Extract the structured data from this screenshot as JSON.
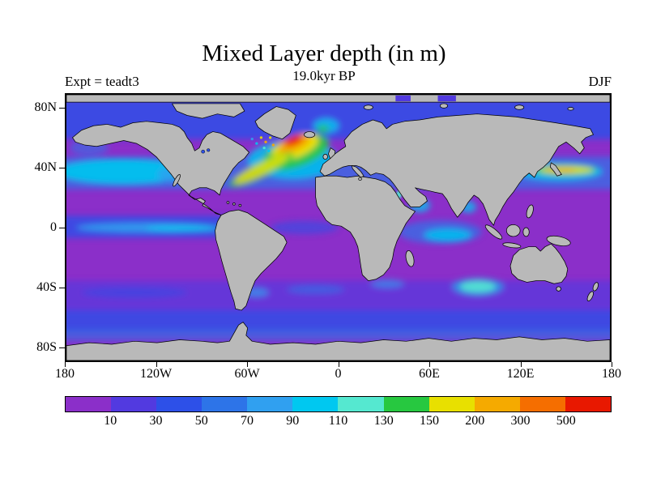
{
  "header": {
    "title": "Mixed Layer depth (in m)",
    "subtitle": "19.0kyr BP",
    "experiment": "Expt = teadt3",
    "season": "DJF"
  },
  "chart_data": {
    "type": "heatmap",
    "title": "Mixed Layer depth (in m)",
    "subtitle": "19.0kyr BP",
    "experiment": "Expt = teadt3",
    "season": "DJF",
    "units": "m",
    "map_projection": "global equirectangular, longitude -180..180 centered on 0, latitude 90S..90N",
    "x_ticks": [
      "180",
      "120W",
      "60W",
      "0",
      "60E",
      "120E",
      "180"
    ],
    "y_ticks": [
      "80N",
      "40N",
      "0",
      "40S",
      "80S"
    ],
    "colorbar": {
      "levels": [
        "10",
        "30",
        "50",
        "70",
        "90",
        "110",
        "130",
        "150",
        "200",
        "300",
        "500"
      ],
      "colors": [
        "#8b2fc9",
        "#523ae0",
        "#2d50e8",
        "#2d74e8",
        "#30a0f0",
        "#00c8f0",
        "#55e8d0",
        "#27c840",
        "#e8e000",
        "#f5aa00",
        "#f56e00",
        "#e81800"
      ]
    },
    "land_color": "#b9b9b9",
    "coast_color": "#000000",
    "notable_features": [
      "Deepest mixed layers (orange/red, 300 to >500 m) in the subpolar North Atlantic south of Iceland and Greenland",
      "Yellow band (150-300 m) along the Gulf Stream / North Atlantic Drift",
      "Yellow Kuroshio-extension band east of Japan (~150-300 m)",
      "Cyan bands (~90-130 m) across the North Pacific near 40N and along the equatorial Pacific",
      "Cyan patches in the Arabian Sea, Bay of Bengal and south Indian Ocean near 40S",
      "Shallow mixed layers (purple, <30 m) over most of the tropics and Southern Hemisphere",
      "Land masses shown in gray with black coastlines"
    ]
  }
}
